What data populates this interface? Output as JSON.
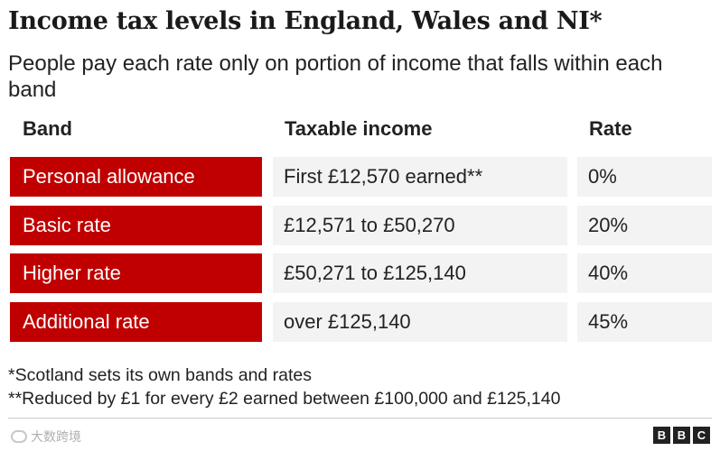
{
  "chart_data": {
    "type": "table",
    "title": "Income tax levels in England, Wales and NI*",
    "subtitle": "People pay each rate only on portion of income that falls within each band",
    "columns": [
      "Band",
      "Taxable income",
      "Rate"
    ],
    "rows": [
      {
        "band": "Personal allowance",
        "income": "First £12,570 earned**",
        "rate": "0%"
      },
      {
        "band": "Basic rate",
        "income": "£12,571 to £50,270",
        "rate": "20%"
      },
      {
        "band": "Higher rate",
        "income": "£50,271 to £125,140",
        "rate": "40%"
      },
      {
        "band": "Additional rate",
        "income": "over £125,140",
        "rate": "45%"
      }
    ],
    "footnotes": [
      "*Scotland sets its own bands and rates",
      "**Reduced by £1 for every £2 earned between £100,000 and £125,140"
    ]
  },
  "colors": {
    "band_fill": "#c00000",
    "cell_fill": "#f3f3f3",
    "text": "#222222"
  },
  "brand": {
    "letters": [
      "B",
      "B",
      "C"
    ]
  },
  "watermark": {
    "text": "大数跨境",
    "icon": "watermark-logo-icon"
  }
}
